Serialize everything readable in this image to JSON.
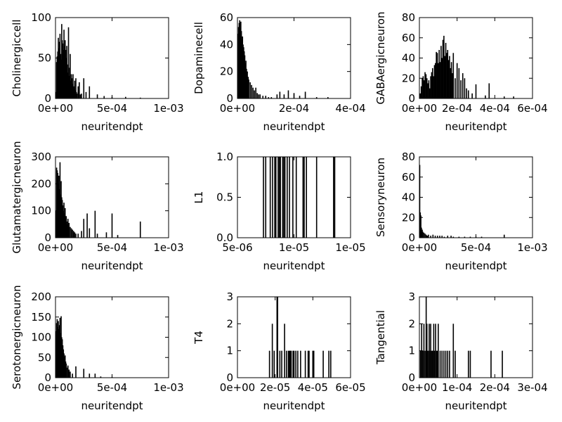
{
  "chart_data": [
    {
      "type": "bar",
      "xlabel": "neuritendpt",
      "ylabel": "Cholinergiccell",
      "xlim": [
        0,
        0.001
      ],
      "ylim": [
        0,
        100
      ],
      "xticks": [
        "0e+00",
        "5e-04",
        "1e-03"
      ],
      "xtick_values": [
        0,
        0.0005,
        0.001
      ],
      "yticks": [
        "0",
        "50",
        "100"
      ],
      "ytick_values": [
        0,
        50,
        100
      ],
      "x": [
        5e-06,
        1e-05,
        1.5e-05,
        2e-05,
        2.5e-05,
        3e-05,
        3.5e-05,
        4e-05,
        4.5e-05,
        5e-05,
        5.5e-05,
        6e-05,
        6.5e-05,
        7e-05,
        7.5e-05,
        8e-05,
        8.5e-05,
        9e-05,
        9.5e-05,
        0.0001,
        0.000105,
        0.00011,
        0.000115,
        0.00012,
        0.000125,
        0.00013,
        0.000135,
        0.00014,
        0.000145,
        0.00015,
        0.000155,
        0.00016,
        0.000165,
        0.00017,
        0.000175,
        0.00018,
        0.000185,
        0.00019,
        0.0002,
        0.00021,
        0.00022,
        0.00023,
        0.00025,
        0.00027,
        0.0003,
        0.00037,
        0.00043,
        0.0005,
        0.00062,
        0.00075
      ],
      "y": [
        8,
        45,
        52,
        58,
        75,
        62,
        70,
        80,
        55,
        48,
        92,
        72,
        68,
        60,
        85,
        65,
        72,
        60,
        50,
        65,
        42,
        32,
        88,
        28,
        38,
        55,
        22,
        30,
        25,
        18,
        30,
        15,
        12,
        22,
        10,
        25,
        8,
        6,
        15,
        20,
        5,
        6,
        25,
        8,
        15,
        5,
        3,
        2,
        2,
        1
      ]
    },
    {
      "type": "bar",
      "xlabel": "neuritendpt",
      "ylabel": "Dopaminecell",
      "xlim": [
        0,
        0.0004
      ],
      "ylim": [
        0,
        60
      ],
      "xticks": [
        "0e+00",
        "2e-04",
        "4e-04"
      ],
      "xtick_values": [
        0,
        0.0002,
        0.0004
      ],
      "yticks": [
        "0",
        "20",
        "40",
        "60"
      ],
      "ytick_values": [
        0,
        20,
        40,
        60
      ],
      "x": [
        2e-06,
        4e-06,
        6e-06,
        8e-06,
        1e-05,
        1.2e-05,
        1.4e-05,
        1.6e-05,
        1.8e-05,
        2e-05,
        2.2e-05,
        2.4e-05,
        2.6e-05,
        2.8e-05,
        3e-05,
        3.2e-05,
        3.5e-05,
        3.8e-05,
        4e-05,
        4.5e-05,
        5e-05,
        5.5e-05,
        6e-05,
        6.5e-05,
        7e-05,
        7.5e-05,
        8e-05,
        9e-05,
        0.0001,
        0.00011,
        0.00012,
        0.00014,
        0.00015,
        0.000165,
        0.00018,
        0.0002,
        0.00022,
        0.00024,
        0.00028,
        0.00032
      ],
      "y": [
        48,
        53,
        56,
        58,
        52,
        57,
        50,
        44,
        46,
        40,
        38,
        35,
        32,
        26,
        28,
        22,
        20,
        16,
        14,
        12,
        10,
        8,
        6,
        8,
        4,
        3,
        3,
        2,
        2,
        1,
        1,
        3,
        5,
        3,
        6,
        4,
        2,
        5,
        1,
        1
      ]
    },
    {
      "type": "bar",
      "xlabel": "neuritendpt",
      "ylabel": "GABAergicneuron",
      "xlim": [
        0,
        0.0006
      ],
      "ylim": [
        0,
        80
      ],
      "xticks": [
        "0e+00",
        "2e-04",
        "4e-04",
        "6e-04"
      ],
      "xtick_values": [
        0,
        0.0002,
        0.0004,
        0.0006
      ],
      "yticks": [
        "0",
        "20",
        "40",
        "60",
        "80"
      ],
      "ytick_values": [
        0,
        20,
        40,
        60,
        80
      ],
      "x": [
        5e-06,
        1e-05,
        1.5e-05,
        2e-05,
        2.5e-05,
        3e-05,
        3.5e-05,
        4e-05,
        4.5e-05,
        5e-05,
        5.5e-05,
        6e-05,
        6.5e-05,
        7e-05,
        7.5e-05,
        8e-05,
        8.5e-05,
        9e-05,
        9.5e-05,
        0.0001,
        0.000105,
        0.00011,
        0.000115,
        0.00012,
        0.000125,
        0.00013,
        0.000135,
        0.00014,
        0.000145,
        0.00015,
        0.000155,
        0.00016,
        0.000165,
        0.00017,
        0.000175,
        0.00018,
        0.00019,
        0.0002,
        0.00021,
        0.00022,
        0.00023,
        0.00024,
        0.00025,
        0.00026,
        0.00028,
        0.0003,
        0.00035,
        0.00037,
        0.00045,
        0.0005
      ],
      "y": [
        5,
        12,
        20,
        22,
        18,
        26,
        24,
        20,
        15,
        18,
        10,
        22,
        26,
        30,
        22,
        33,
        35,
        46,
        45,
        35,
        48,
        36,
        52,
        40,
        58,
        62,
        42,
        55,
        45,
        48,
        38,
        42,
        30,
        36,
        25,
        45,
        20,
        35,
        30,
        18,
        25,
        20,
        10,
        8,
        5,
        14,
        3,
        15,
        2,
        2
      ]
    },
    {
      "type": "bar",
      "xlabel": "neuritendpt",
      "ylabel": "Glutamatergicneuron",
      "xlim": [
        0,
        0.001
      ],
      "ylim": [
        0,
        300
      ],
      "xticks": [
        "0e+00",
        "5e-04",
        "1e-03"
      ],
      "xtick_values": [
        0,
        0.0005,
        0.001
      ],
      "yticks": [
        "0",
        "100",
        "200",
        "300"
      ],
      "ytick_values": [
        0,
        100,
        200,
        300
      ],
      "x": [
        5e-06,
        1e-05,
        1.5e-05,
        2e-05,
        2.5e-05,
        3e-05,
        3.5e-05,
        4e-05,
        4.5e-05,
        5e-05,
        5.5e-05,
        6e-05,
        6.5e-05,
        7e-05,
        7.5e-05,
        8e-05,
        8.5e-05,
        9e-05,
        9.5e-05,
        0.0001,
        0.000105,
        0.00011,
        0.000115,
        0.00012,
        0.00013,
        0.00014,
        0.00015,
        0.00016,
        0.00017,
        0.00018,
        0.0002,
        0.00023,
        0.00025,
        0.00028,
        0.0003,
        0.00035,
        0.00037,
        0.00045,
        0.0005,
        0.00055,
        0.00075
      ],
      "y": [
        100,
        260,
        250,
        240,
        200,
        230,
        180,
        280,
        160,
        210,
        150,
        140,
        120,
        100,
        130,
        90,
        110,
        70,
        80,
        60,
        50,
        70,
        45,
        55,
        40,
        35,
        30,
        25,
        20,
        15,
        15,
        25,
        70,
        90,
        35,
        100,
        15,
        20,
        90,
        10,
        60
      ]
    },
    {
      "type": "bar",
      "xlabel": "neuritendpt",
      "ylabel": "L1",
      "xlim": [
        5e-06,
        1.5e-05
      ],
      "ylim": [
        0,
        1
      ],
      "xticks": [
        "5e-06",
        "1e-05",
        "1e-05"
      ],
      "xtick_values": [
        5e-06,
        1e-05,
        1.5e-05
      ],
      "yticks": [
        "0.0",
        "0.5",
        "1.0"
      ],
      "ytick_values": [
        0,
        0.5,
        1
      ],
      "x": [
        7.3e-06,
        7.5e-06,
        7.9e-06,
        8.1e-06,
        8.3e-06,
        8.4e-06,
        8.6e-06,
        8.7e-06,
        8.8e-06,
        9e-06,
        9.1e-06,
        9.2e-06,
        9.4e-06,
        9.6e-06,
        9.9e-06,
        1.02e-05,
        1.08e-05,
        1.09e-05,
        1.11e-05,
        1.2e-05,
        1.35e-05,
        1.36e-05
      ],
      "y": [
        1,
        1,
        1,
        1,
        1,
        1,
        1,
        1,
        1,
        1,
        1,
        1,
        1,
        1,
        1,
        1,
        1,
        1,
        1,
        1,
        1,
        1
      ]
    },
    {
      "type": "bar",
      "xlabel": "neuritendpt",
      "ylabel": "Sensoryneuron",
      "xlim": [
        0,
        0.001
      ],
      "ylim": [
        0,
        80
      ],
      "xticks": [
        "0e+00",
        "5e-04",
        "1e-03"
      ],
      "xtick_values": [
        0,
        0.0005,
        0.001
      ],
      "yticks": [
        "0",
        "20",
        "40",
        "60",
        "80"
      ],
      "ytick_values": [
        0,
        20,
        40,
        60,
        80
      ],
      "x": [
        3e-06,
        8e-06,
        1.3e-05,
        1.8e-05,
        2.5e-05,
        3e-05,
        4e-05,
        5e-05,
        6e-05,
        7e-05,
        8e-05,
        0.0001,
        0.00012,
        0.00014,
        0.00016,
        0.00018,
        0.0002,
        0.00022,
        0.00025,
        0.00028,
        0.0003,
        0.00035,
        0.0004,
        0.00045,
        0.0005,
        0.00055,
        0.00075
      ],
      "y": [
        72,
        25,
        22,
        10,
        8,
        6,
        5,
        4,
        3,
        2,
        3,
        2,
        3,
        2,
        2,
        2,
        2,
        1,
        2,
        2,
        1,
        1,
        1,
        1,
        1,
        1,
        3
      ]
    },
    {
      "type": "bar",
      "xlabel": "neuritendpt",
      "ylabel": "Serotonergicneuron",
      "xlim": [
        0,
        0.001
      ],
      "ylim": [
        0,
        200
      ],
      "xticks": [
        "0e+00",
        "5e-04",
        "1e-03"
      ],
      "xtick_values": [
        0,
        0.0005,
        0.001
      ],
      "yticks": [
        "0",
        "50",
        "100",
        "150",
        "200"
      ],
      "ytick_values": [
        0,
        50,
        100,
        150,
        200
      ],
      "x": [
        5e-06,
        1e-05,
        1.5e-05,
        2e-05,
        2.5e-05,
        3e-05,
        3.5e-05,
        4e-05,
        4.5e-05,
        5e-05,
        5.5e-05,
        6e-05,
        6.5e-05,
        7e-05,
        7.5e-05,
        8e-05,
        8.5e-05,
        9e-05,
        9.5e-05,
        0.0001,
        0.00011,
        0.00012,
        0.00013,
        0.00015,
        0.00018,
        0.00025,
        0.0003,
        0.00035,
        0.0004,
        0.0005
      ],
      "y": [
        115,
        135,
        145,
        125,
        140,
        120,
        130,
        148,
        110,
        152,
        100,
        95,
        80,
        70,
        60,
        50,
        55,
        40,
        35,
        25,
        30,
        20,
        15,
        10,
        28,
        22,
        10,
        10,
        3,
        2
      ]
    },
    {
      "type": "bar",
      "xlabel": "neuritendpt",
      "ylabel": "T4",
      "xlim": [
        0,
        6e-05
      ],
      "ylim": [
        0,
        3
      ],
      "xticks": [
        "0e+00",
        "2e-05",
        "4e-05",
        "6e-05"
      ],
      "xtick_values": [
        0,
        2e-05,
        4e-05,
        6e-05
      ],
      "yticks": [
        "0",
        "1",
        "2",
        "3"
      ],
      "ytick_values": [
        0,
        1,
        2,
        3
      ],
      "x": [
        1.7e-05,
        1.85e-05,
        1.95e-05,
        2.1e-05,
        2.13e-05,
        2.25e-05,
        2.35e-05,
        2.5e-05,
        2.6e-05,
        2.7e-05,
        2.75e-05,
        2.8e-05,
        2.85e-05,
        2.95e-05,
        3e-05,
        3.1e-05,
        3.2e-05,
        3.35e-05,
        3.6e-05,
        3.75e-05,
        3.8e-05,
        4e-05,
        4.05e-05,
        4.55e-05,
        4.85e-05,
        4.95e-05
      ],
      "y": [
        1,
        2,
        1,
        3,
        3,
        1,
        1,
        2,
        1,
        1,
        1,
        1,
        1,
        1,
        1,
        1,
        1,
        1,
        1,
        1,
        1,
        1,
        1,
        1,
        1,
        1
      ]
    },
    {
      "type": "bar",
      "xlabel": "neuritendpt",
      "ylabel": "Tangential",
      "xlim": [
        0,
        0.0003
      ],
      "ylim": [
        0,
        3
      ],
      "xticks": [
        "0e+00",
        "1e-04",
        "2e-04",
        "3e-04"
      ],
      "xtick_values": [
        0,
        0.0001,
        0.0002,
        0.0003
      ],
      "yticks": [
        "0",
        "1",
        "2",
        "3"
      ],
      "ytick_values": [
        0,
        1,
        2,
        3
      ],
      "x": [
        3e-06,
        6e-06,
        9e-06,
        1.2e-05,
        1.5e-05,
        1.8e-05,
        2e-05,
        2.3e-05,
        2.6e-05,
        2.8e-05,
        3e-05,
        3.3e-05,
        3.5e-05,
        3.8e-05,
        4e-05,
        4.3e-05,
        4.5e-05,
        4.8e-05,
        5e-05,
        5.5e-05,
        6e-05,
        6.5e-05,
        7e-05,
        7.5e-05,
        8e-05,
        9e-05,
        9.5e-05,
        0.00013,
        0.000135,
        0.00019,
        0.00022
      ],
      "y": [
        1,
        2,
        1,
        2,
        1,
        3,
        2,
        1,
        2,
        1,
        2,
        1,
        1,
        2,
        1,
        2,
        1,
        1,
        2,
        1,
        1,
        1,
        1,
        1,
        1,
        2,
        1,
        1,
        1,
        1,
        1
      ]
    }
  ]
}
